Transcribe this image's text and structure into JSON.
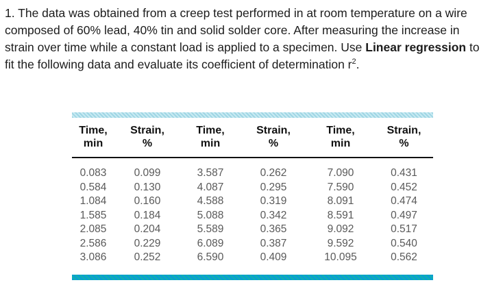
{
  "problem": {
    "text_before_bold": "1. The data was obtained from a creep test performed in at room temperature on a wire composed of 60% lead, 40% tin and solid solder core. After measuring the increase in strain over time while a constant load is applied to a specimen. Use ",
    "bold_text": "Linear regression",
    "text_after_bold": " to fit the following data and evaluate its coefficient of determination r",
    "superscript": "2",
    "after_superscript": "."
  },
  "table": {
    "headers": [
      {
        "line1": "Time,",
        "line2": "min"
      },
      {
        "line1": "Strain,",
        "line2": "%"
      },
      {
        "line1": "Time,",
        "line2": "min"
      },
      {
        "line1": "Strain,",
        "line2": "%"
      },
      {
        "line1": "Time,",
        "line2": "min"
      },
      {
        "line1": "Strain,",
        "line2": "%"
      }
    ],
    "rows": [
      [
        "0.083",
        "0.099",
        "3.587",
        "0.262",
        "7.090",
        "0.431"
      ],
      [
        "0.584",
        "0.130",
        "4.087",
        "0.295",
        "7.590",
        "0.452"
      ],
      [
        "1.084",
        "0.160",
        "4.588",
        "0.319",
        "8.091",
        "0.474"
      ],
      [
        "1.585",
        "0.184",
        "5.088",
        "0.342",
        "8.591",
        "0.497"
      ],
      [
        "2.085",
        "0.204",
        "5.589",
        "0.365",
        "9.092",
        "0.517"
      ],
      [
        "2.586",
        "0.229",
        "6.089",
        "0.387",
        "9.592",
        "0.540"
      ],
      [
        "3.086",
        "0.252",
        "6.590",
        "0.409",
        "10.095",
        "0.562"
      ]
    ]
  },
  "colors": {
    "top_band": "#a9dbe8",
    "bottom_band": "#0a9ed2",
    "header_text": "#111111",
    "data_text": "#595959",
    "body_text": "#1c1c1c"
  }
}
